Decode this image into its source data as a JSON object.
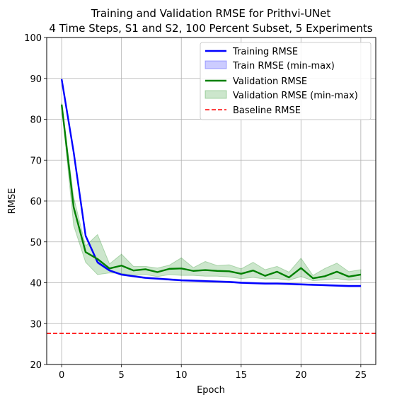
{
  "chart_data": {
    "type": "line",
    "title": [
      "Training and Validation RMSE for Prithvi-UNet",
      "4 Time Steps, S1 and S2, 100 Percent Subset, 5 Experiments"
    ],
    "xlabel": "Epoch",
    "ylabel": "RMSE",
    "xlim": [
      -1.25,
      26.25
    ],
    "ylim": [
      20,
      100
    ],
    "xticks": [
      0,
      5,
      10,
      15,
      20,
      25
    ],
    "yticks": [
      20,
      30,
      40,
      50,
      60,
      70,
      80,
      90,
      100
    ],
    "grid": true,
    "legend_position": "upper right",
    "legend": [
      "Training RMSE",
      "Train RMSE (min-max)",
      "Validation RMSE",
      "Validation RMSE (min-max)",
      "Baseline RMSE"
    ],
    "x": [
      0,
      1,
      2,
      3,
      4,
      5,
      6,
      7,
      8,
      9,
      10,
      11,
      12,
      13,
      14,
      15,
      16,
      17,
      18,
      19,
      20,
      21,
      22,
      23,
      24,
      25
    ],
    "series": [
      {
        "name": "Training RMSE",
        "color": "#0000ff",
        "values": [
          89.8,
          72.0,
          51.5,
          45.0,
          43.0,
          42.0,
          41.6,
          41.2,
          41.0,
          40.8,
          40.6,
          40.5,
          40.4,
          40.3,
          40.2,
          40.0,
          39.9,
          39.8,
          39.8,
          39.7,
          39.6,
          39.5,
          39.4,
          39.3,
          39.2,
          39.2
        ],
        "min": [
          89.6,
          71.6,
          51.1,
          44.7,
          42.8,
          41.8,
          41.4,
          41.0,
          40.8,
          40.6,
          40.4,
          40.3,
          40.2,
          40.1,
          40.0,
          39.8,
          39.7,
          39.6,
          39.6,
          39.5,
          39.4,
          39.3,
          39.2,
          39.1,
          39.0,
          39.0
        ],
        "max": [
          90.0,
          72.4,
          51.9,
          45.3,
          43.2,
          42.2,
          41.8,
          41.4,
          41.2,
          41.0,
          40.8,
          40.7,
          40.6,
          40.5,
          40.4,
          40.2,
          40.1,
          40.0,
          40.0,
          39.9,
          39.8,
          39.7,
          39.6,
          39.5,
          39.4,
          39.4
        ]
      },
      {
        "name": "Validation RMSE",
        "color": "#008000",
        "values": [
          83.6,
          58.5,
          47.5,
          45.8,
          43.5,
          44.2,
          43.0,
          43.3,
          42.6,
          43.4,
          43.5,
          42.9,
          43.1,
          42.9,
          42.8,
          42.2,
          43.0,
          41.7,
          42.7,
          41.3,
          43.6,
          41.1,
          41.6,
          42.7,
          41.5,
          42.0
        ],
        "min": [
          83.2,
          54.0,
          45.0,
          42.0,
          42.4,
          42.3,
          41.8,
          42.0,
          41.5,
          42.0,
          41.8,
          41.8,
          41.6,
          41.6,
          41.4,
          41.0,
          41.3,
          40.9,
          41.0,
          40.6,
          41.5,
          40.5,
          40.7,
          41.0,
          40.6,
          40.8
        ],
        "max": [
          84.0,
          61.0,
          49.0,
          51.8,
          44.6,
          47.0,
          44.0,
          44.0,
          43.6,
          44.3,
          46.1,
          43.7,
          45.2,
          44.2,
          44.4,
          43.4,
          45.0,
          43.2,
          44.0,
          42.6,
          46.0,
          41.8,
          43.5,
          44.8,
          42.7,
          43.2
        ]
      }
    ],
    "reference_lines": [
      {
        "name": "Baseline RMSE",
        "y": 27.6,
        "color": "#ff0000",
        "style": "dashed"
      }
    ]
  }
}
